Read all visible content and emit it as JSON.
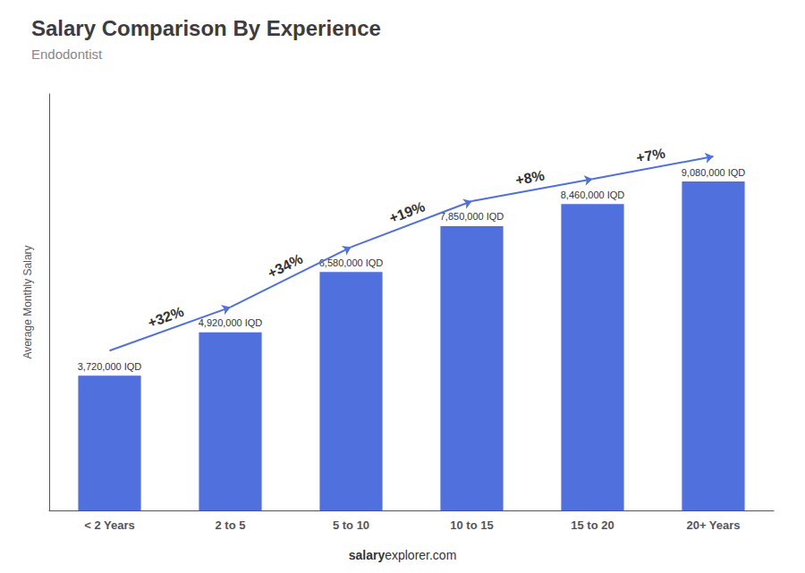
{
  "chart_data": {
    "type": "bar",
    "title": "Salary Comparison By Experience",
    "subtitle": "Endodontist",
    "ylabel": "Average Monthly Salary",
    "footer": [
      "salary",
      "explorer.com"
    ],
    "categories": [
      "< 2 Years",
      "2 to 5",
      "5 to 10",
      "10 to 15",
      "15 to 20",
      "20+ Years"
    ],
    "values": [
      3720000,
      4920000,
      6580000,
      7850000,
      8460000,
      9080000
    ],
    "value_labels": [
      "3,720,000 IQD",
      "4,920,000 IQD",
      "6,580,000 IQD",
      "7,850,000 IQD",
      "8,460,000 IQD",
      "9,080,000 IQD"
    ],
    "data_labels": true,
    "annotations": [
      "+32%",
      "+34%",
      "+19%",
      "+8%",
      "+7%"
    ],
    "ylim": [
      0,
      11500000
    ],
    "tick_labels": "x",
    "grid": false
  }
}
